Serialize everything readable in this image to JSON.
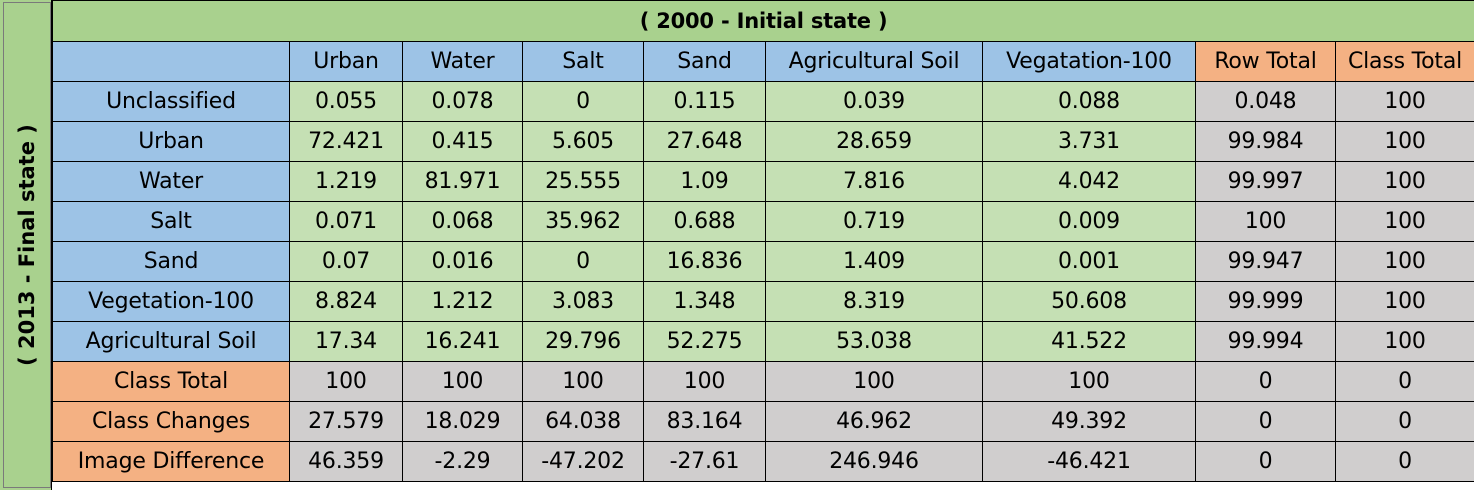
{
  "side_label": "( 2013 - Final state )",
  "top_label": "( 2000 - Initial state )",
  "columns": [
    "Urban",
    "Water",
    "Salt",
    "Sand",
    "Agricultural Soil",
    "Vegatation-100",
    "Row Total",
    "Class Total"
  ],
  "rows": [
    {
      "label": "Unclassified",
      "values": [
        "0.055",
        "0.078",
        "0",
        "0.115",
        "0.039",
        "0.088",
        "0.048",
        "100"
      ]
    },
    {
      "label": "Urban",
      "values": [
        "72.421",
        "0.415",
        "5.605",
        "27.648",
        "28.659",
        "3.731",
        "99.984",
        "100"
      ]
    },
    {
      "label": "Water",
      "values": [
        "1.219",
        "81.971",
        "25.555",
        "1.09",
        "7.816",
        "4.042",
        "99.997",
        "100"
      ]
    },
    {
      "label": "Salt",
      "values": [
        "0.071",
        "0.068",
        "35.962",
        "0.688",
        "0.719",
        "0.009",
        "100",
        "100"
      ]
    },
    {
      "label": "Sand",
      "values": [
        "0.07",
        "0.016",
        "0",
        "16.836",
        "1.409",
        "0.001",
        "99.947",
        "100"
      ]
    },
    {
      "label": "Vegetation-100",
      "values": [
        "8.824",
        "1.212",
        "3.083",
        "1.348",
        "8.319",
        "50.608",
        "99.999",
        "100"
      ]
    },
    {
      "label": "Agricultural Soil",
      "values": [
        "17.34",
        "16.241",
        "29.796",
        "52.275",
        "53.038",
        "41.522",
        "99.994",
        "100"
      ]
    },
    {
      "label": "Class Total",
      "values": [
        "100",
        "100",
        "100",
        "100",
        "100",
        "100",
        "0",
        "0"
      ]
    },
    {
      "label": "Class Changes",
      "values": [
        "27.579",
        "18.029",
        "64.038",
        "83.164",
        "46.962",
        "49.392",
        "0",
        "0"
      ]
    },
    {
      "label": "Image Difference",
      "values": [
        "46.359",
        "-2.29",
        "-47.202",
        "-27.61",
        "246.946",
        "-46.421",
        "0",
        "0"
      ]
    }
  ],
  "colors": {
    "header_green": "#a9d18e",
    "header_blue": "#9dc3e6",
    "data_green": "#c5e0b4",
    "total_orange": "#f4b183",
    "total_grey": "#d0cece"
  }
}
